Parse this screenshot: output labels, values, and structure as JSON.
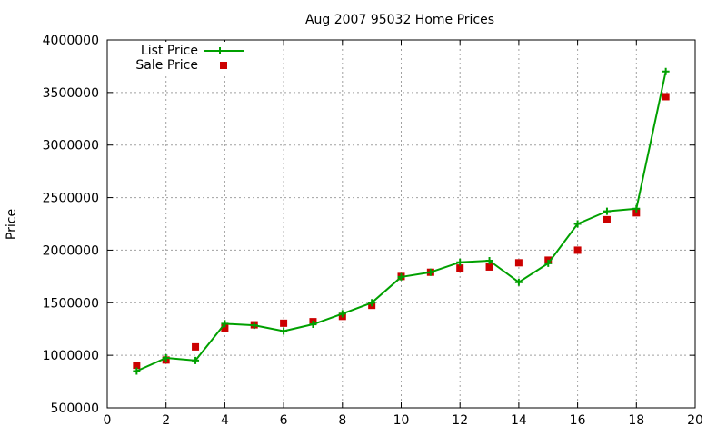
{
  "chart_data": {
    "type": "line",
    "title": "Aug 2007 95032 Home Prices",
    "xlabel": "",
    "ylabel": "Price",
    "xlim": [
      0,
      20
    ],
    "ylim": [
      500000,
      4000000
    ],
    "x_ticks": [
      0,
      2,
      4,
      6,
      8,
      10,
      12,
      14,
      16,
      18,
      20
    ],
    "y_ticks": [
      500000,
      1000000,
      1500000,
      2000000,
      2500000,
      3000000,
      3500000,
      4000000
    ],
    "grid": true,
    "legend_position": "top-left",
    "series": [
      {
        "name": "List Price",
        "style": "line+points",
        "marker": "plus",
        "color": "#00a000",
        "x": [
          1,
          2,
          3,
          4,
          5,
          6,
          7,
          8,
          9,
          10,
          11,
          12,
          13,
          14,
          15,
          16,
          17,
          18,
          19
        ],
        "values": [
          850000,
          975000,
          950000,
          1300000,
          1285000,
          1230000,
          1295000,
          1395000,
          1500000,
          1745000,
          1790000,
          1885000,
          1900000,
          1695000,
          1875000,
          2250000,
          2370000,
          2395000,
          3700000
        ]
      },
      {
        "name": "Sale Price",
        "style": "points",
        "marker": "square",
        "color": "#cc0000",
        "x": [
          1,
          2,
          3,
          4,
          5,
          6,
          7,
          8,
          9,
          10,
          11,
          12,
          13,
          14,
          15,
          16,
          17,
          18,
          19
        ],
        "values": [
          905000,
          955000,
          1080000,
          1260000,
          1290000,
          1305000,
          1320000,
          1370000,
          1475000,
          1750000,
          1790000,
          1830000,
          1840000,
          1880000,
          1905000,
          2000000,
          2290000,
          2355000,
          3460000
        ]
      }
    ]
  }
}
